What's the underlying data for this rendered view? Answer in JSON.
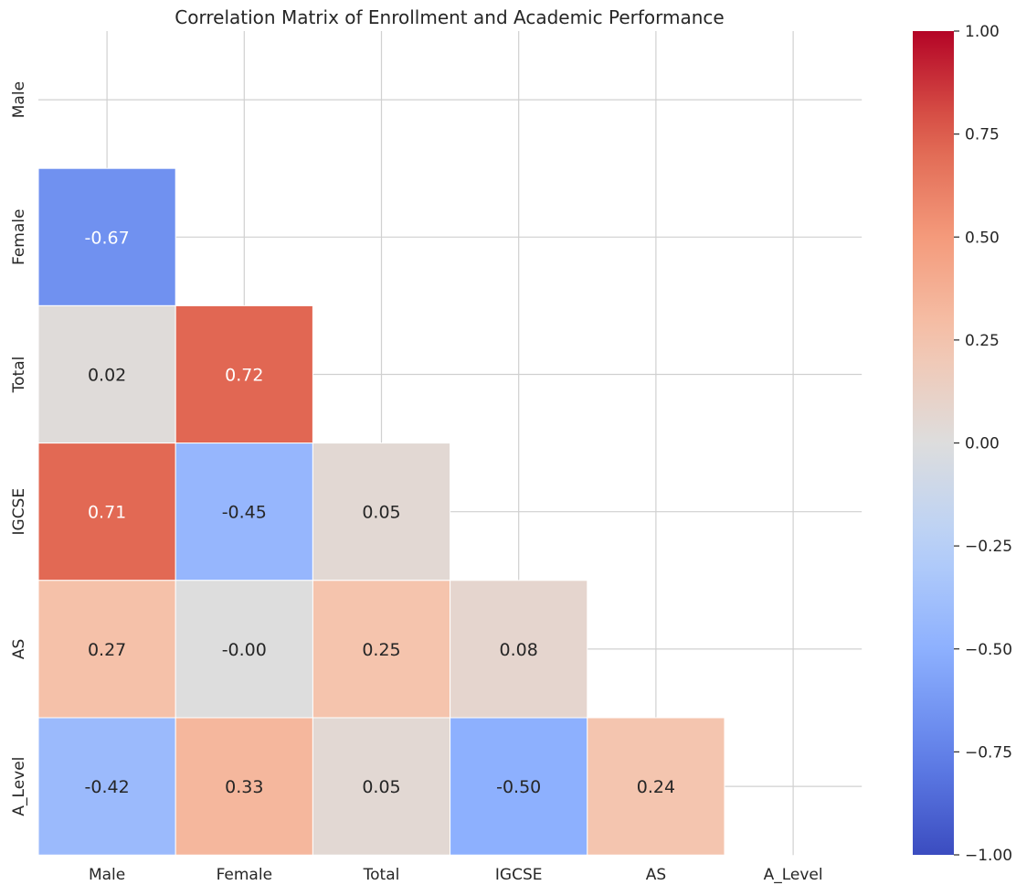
{
  "chart_data": {
    "type": "heatmap",
    "title": "Correlation Matrix of Enrollment and Academic Performance",
    "x_labels": [
      "Male",
      "Female",
      "Total",
      "IGCSE",
      "AS",
      "A_Level"
    ],
    "y_labels": [
      "Male",
      "Female",
      "Total",
      "IGCSE",
      "AS",
      "A_Level"
    ],
    "mask": "upper-triangle-including-diagonal",
    "values": [
      [
        null,
        null,
        null,
        null,
        null,
        null
      ],
      [
        -0.67,
        null,
        null,
        null,
        null,
        null
      ],
      [
        0.02,
        0.72,
        null,
        null,
        null,
        null
      ],
      [
        0.71,
        -0.45,
        0.05,
        null,
        null,
        null
      ],
      [
        0.27,
        -0.0,
        0.25,
        0.08,
        null,
        null
      ],
      [
        -0.42,
        0.33,
        0.05,
        -0.5,
        0.24,
        null
      ]
    ],
    "cell_labels": [
      [
        "",
        "",
        "",
        "",
        "",
        ""
      ],
      [
        "-0.67",
        "",
        "",
        "",
        "",
        ""
      ],
      [
        "0.02",
        "0.72",
        "",
        "",
        "",
        ""
      ],
      [
        "0.71",
        "-0.45",
        "0.05",
        "",
        "",
        ""
      ],
      [
        "0.27",
        "-0.00",
        "0.25",
        "0.08",
        "",
        ""
      ],
      [
        "-0.42",
        "0.33",
        "0.05",
        "-0.50",
        "0.24",
        ""
      ]
    ],
    "colormap": "coolwarm",
    "vmin": -1.0,
    "vmax": 1.0,
    "colorbar_ticks": [
      1.0,
      0.75,
      0.5,
      0.25,
      0.0,
      -0.25,
      -0.5,
      -0.75,
      -1.0
    ],
    "colorbar_tick_labels": [
      "1.00",
      "0.75",
      "0.50",
      "0.25",
      "0.00",
      "−0.25",
      "−0.50",
      "−0.75",
      "−1.00"
    ],
    "grid": true,
    "colors": {
      "grid": "#d0d0d0",
      "cell_border": "#ffffff",
      "text_dark": "#262626",
      "text_light": "#ffffff",
      "cmap_low": "#3b4cc0",
      "cmap_mid": "#dddddd",
      "cmap_high": "#b40426"
    }
  }
}
